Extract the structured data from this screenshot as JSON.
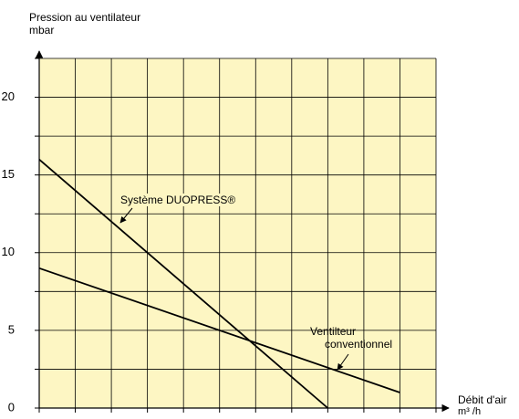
{
  "chart_data": {
    "type": "line",
    "y_label": [
      "Pression au ventilateur",
      "mbar"
    ],
    "x_label": [
      "Débit d'air",
      "m³ /h"
    ],
    "series": [
      {
        "name": "Système DUOPRESS®",
        "color": "#000000",
        "x": [
          0,
          8
        ],
        "values": [
          16,
          0
        ]
      },
      {
        "name": "Ventilteur conventionnel",
        "color": "#000000",
        "x": [
          0,
          10
        ],
        "values": [
          9,
          1
        ]
      }
    ],
    "xlim": [
      0,
      11
    ],
    "xticks": [
      0,
      1,
      2,
      3,
      4,
      5,
      6,
      7,
      8,
      9,
      10,
      11
    ],
    "ylim": [
      0,
      22.5
    ],
    "yticks": [
      0,
      5,
      10,
      15,
      20
    ],
    "yminor": [
      2.5,
      7.5,
      12.5,
      17.5,
      22.5
    ],
    "grid": true,
    "background": "#fdf6c3"
  }
}
